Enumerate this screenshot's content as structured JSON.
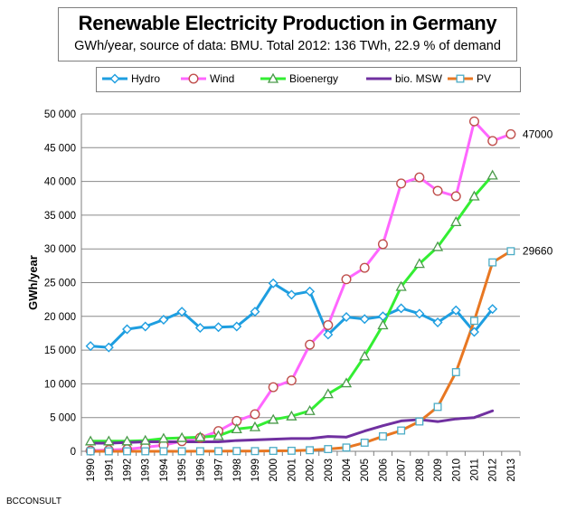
{
  "chart_data": {
    "type": "line",
    "title": "Renewable Electricity Production in Germany",
    "subtitle": "GWh/year, source of data: BMU. Total 2012: 136 TWh, 22.9 % of demand",
    "xlabel": "",
    "ylabel": "GWh/year",
    "ylim": [
      0,
      50000
    ],
    "yticks": [
      0,
      5000,
      10000,
      15000,
      20000,
      25000,
      30000,
      35000,
      40000,
      45000,
      50000
    ],
    "ytick_labels": [
      "0",
      "5 000",
      "10 000",
      "15 000",
      "20 000",
      "25 000",
      "30 000",
      "35 000",
      "40 000",
      "45 000",
      "50 000"
    ],
    "x": [
      "1990",
      "1991",
      "1992",
      "1993",
      "1994",
      "1995",
      "1996",
      "1997",
      "1998",
      "1999",
      "2000",
      "2001",
      "2002",
      "2003",
      "2004",
      "2005",
      "2006",
      "2007",
      "2008",
      "2009",
      "2010",
      "2011",
      "2012",
      "2013"
    ],
    "grid": "horizontal",
    "legend_position": "top",
    "series": [
      {
        "name": "Hydro",
        "color": "#1e9ee0",
        "marker": "diamond",
        "values": [
          15600,
          15400,
          18100,
          18500,
          19500,
          20700,
          18300,
          18400,
          18500,
          20700,
          24900,
          23200,
          23700,
          17300,
          19900,
          19600,
          20000,
          21200,
          20400,
          19100,
          20900,
          17700,
          21100,
          null
        ]
      },
      {
        "name": "Wind",
        "color": "#ff66ff",
        "marker": "circle",
        "values": [
          100,
          200,
          300,
          600,
          900,
          1500,
          2000,
          3000,
          4500,
          5500,
          9500,
          10500,
          15800,
          18700,
          25500,
          27200,
          30700,
          39700,
          40600,
          38600,
          37800,
          48900,
          46000,
          47000
        ]
      },
      {
        "name": "Bioenergy",
        "color": "#33ee33",
        "marker": "triangle",
        "values": [
          1500,
          1500,
          1500,
          1600,
          1900,
          2000,
          2100,
          2300,
          3300,
          3600,
          4700,
          5200,
          6000,
          8500,
          10100,
          14100,
          18700,
          24400,
          27800,
          30300,
          34000,
          37800,
          40900,
          null
        ]
      },
      {
        "name": "bio. MSW",
        "color": "#7030a0",
        "marker": "none",
        "values": [
          1200,
          1200,
          1300,
          1400,
          1400,
          1400,
          1400,
          1400,
          1600,
          1700,
          1800,
          1900,
          1900,
          2200,
          2100,
          3000,
          3800,
          4500,
          4700,
          4400,
          4800,
          5000,
          6000,
          null
        ]
      },
      {
        "name": "PV",
        "color": "#e87722",
        "marker": "square",
        "values": [
          1,
          1,
          4,
          3,
          7,
          7,
          12,
          18,
          35,
          30,
          60,
          80,
          160,
          330,
          560,
          1280,
          2220,
          3080,
          4420,
          6580,
          11730,
          19340,
          28000,
          29660
        ]
      }
    ],
    "annotations": [
      {
        "text": "47000",
        "series": "Wind",
        "x": "2013",
        "y": 47000
      },
      {
        "text": "29660",
        "series": "PV",
        "x": "2013",
        "y": 29660
      }
    ],
    "footer": "BCCONSULT"
  }
}
